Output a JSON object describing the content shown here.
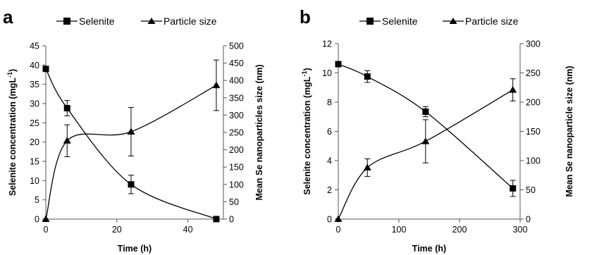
{
  "chart_data": [
    {
      "panel": "a",
      "type": "line",
      "xlabel": "Time (h)",
      "ylabel": "Selenite concentration (mgL",
      "ylabel_sup": "-1",
      "ylabel_end": ")",
      "y2label": "Mean Se nanoparticles size (nm)",
      "xlim": [
        0,
        50
      ],
      "ylim": [
        0,
        45
      ],
      "y2lim": [
        0,
        500
      ],
      "xticks": [
        0,
        20,
        40
      ],
      "yticks": [
        0,
        5,
        10,
        15,
        20,
        25,
        30,
        35,
        40,
        45
      ],
      "y2ticks": [
        0,
        50,
        100,
        150,
        200,
        250,
        300,
        350,
        400,
        450,
        500
      ],
      "grid": false,
      "legend": "top",
      "series": [
        {
          "name": "Selenite",
          "marker": "square",
          "axis": "left",
          "x": [
            0,
            6,
            24,
            48
          ],
          "y": [
            39,
            28.8,
            9,
            0
          ],
          "err": [
            0,
            2,
            2.4,
            0
          ]
        },
        {
          "name": "Particle size",
          "marker": "triangle",
          "axis": "right",
          "x": [
            0,
            6,
            24,
            48
          ],
          "y": [
            0,
            226,
            252,
            386
          ],
          "err": [
            0,
            46,
            70,
            73
          ]
        }
      ]
    },
    {
      "panel": "b",
      "type": "line",
      "xlabel": "Time (h)",
      "ylabel": "Selenite concentration (mgL",
      "ylabel_sup": "-1",
      "ylabel_end": ")",
      "y2label": "Mean Se nanoparticle size (nm)",
      "xlim": [
        0,
        300
      ],
      "ylim": [
        0,
        12
      ],
      "y2lim": [
        0,
        300
      ],
      "xticks": [
        0,
        100,
        200,
        300
      ],
      "yticks": [
        0,
        2,
        4,
        6,
        8,
        10,
        12
      ],
      "y2ticks": [
        0,
        50,
        100,
        150,
        200,
        250,
        300
      ],
      "grid": false,
      "legend": "top",
      "series": [
        {
          "name": "Selenite",
          "marker": "square",
          "axis": "left",
          "x": [
            0,
            48,
            144,
            288
          ],
          "y": [
            10.6,
            9.75,
            7.35,
            2.1
          ],
          "err": [
            0,
            0.4,
            0.35,
            0.55
          ]
        },
        {
          "name": "Particle size",
          "marker": "triangle",
          "axis": "right",
          "x": [
            0,
            48,
            144,
            288
          ],
          "y": [
            0,
            88,
            133,
            221
          ],
          "err": [
            0,
            15,
            37,
            19
          ]
        }
      ]
    }
  ]
}
